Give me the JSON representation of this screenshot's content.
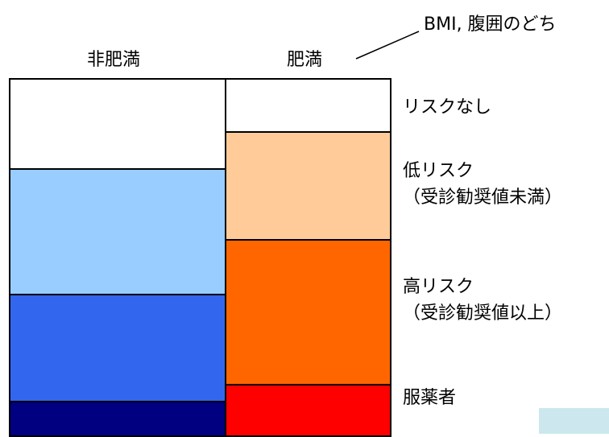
{
  "annotation": {
    "text": "BMI, 腹囲のどち"
  },
  "columns": [
    {
      "label": "非肥満"
    },
    {
      "label": "肥満"
    }
  ],
  "legend": {
    "no_risk": "リスクなし",
    "low_risk_line1": "低リスク",
    "low_risk_line2": "（受診勧奨値未満）",
    "high_risk_line1": "高リスク",
    "high_risk_line2": "（受診勧奨値以上）",
    "medicated": "服薬者"
  },
  "colors": {
    "non_obese": {
      "no_risk": "#ffffff",
      "low_risk": "#99ccff",
      "high_risk": "#3366ee",
      "medicated": "#000080"
    },
    "obese": {
      "no_risk": "#ffffff",
      "low_risk": "#ffcc99",
      "high_risk": "#ff6600",
      "medicated": "#ff0000"
    },
    "overlay": "#cce8ee"
  }
}
